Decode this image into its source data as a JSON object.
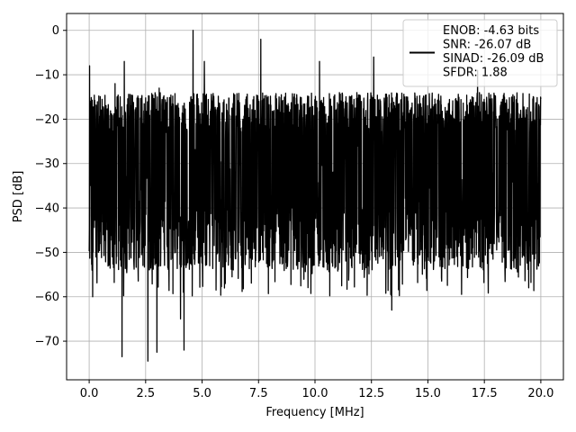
{
  "chart_data": {
    "type": "line",
    "xlabel": "Frequency [MHz]",
    "ylabel": "PSD [dB]",
    "xlim": [
      -1.0,
      21.0
    ],
    "ylim": [
      -78.7,
      3.8
    ],
    "grid": true,
    "legend_placement": "top-right",
    "xticks": [
      0.0,
      2.5,
      5.0,
      7.5,
      10.0,
      12.5,
      15.0,
      17.5,
      20.0
    ],
    "xtick_labels": [
      "0.0",
      "2.5",
      "5.0",
      "7.5",
      "10.0",
      "12.5",
      "15.0",
      "17.5",
      "20.0"
    ],
    "yticks": [
      0,
      -10,
      -20,
      -30,
      -40,
      -50,
      -60,
      -70
    ],
    "ytick_labels": [
      "0",
      "−10",
      "−20",
      "−30",
      "−40",
      "−50",
      "−60",
      "−70"
    ],
    "series": [
      {
        "color": "#000000",
        "x_range": [
          0.0,
          20.0
        ],
        "approx_band_top": -20,
        "approx_band_bottom": -48,
        "spikes": [
          {
            "x": 0.02,
            "y": -8
          },
          {
            "x": 1.15,
            "y": -12
          },
          {
            "x": 1.55,
            "y": -7
          },
          {
            "x": 3.1,
            "y": -13
          },
          {
            "x": 4.6,
            "y": 0
          },
          {
            "x": 5.1,
            "y": -7
          },
          {
            "x": 7.6,
            "y": -2
          },
          {
            "x": 10.2,
            "y": -7
          },
          {
            "x": 12.6,
            "y": -6
          },
          {
            "x": 17.2,
            "y": -9
          }
        ],
        "dips": [
          {
            "x": 1.45,
            "y": -73.5
          },
          {
            "x": 2.6,
            "y": -74.5
          },
          {
            "x": 3.0,
            "y": -72.5
          },
          {
            "x": 4.2,
            "y": -72
          },
          {
            "x": 4.05,
            "y": -65
          },
          {
            "x": 13.4,
            "y": -63
          },
          {
            "x": 0.15,
            "y": -60
          }
        ]
      }
    ],
    "legend": {
      "lines": [
        "ENOB: -4.63 bits",
        "SNR: -26.07 dB",
        "SINAD: -26.09 dB",
        "SFDR: 1.88"
      ]
    }
  }
}
